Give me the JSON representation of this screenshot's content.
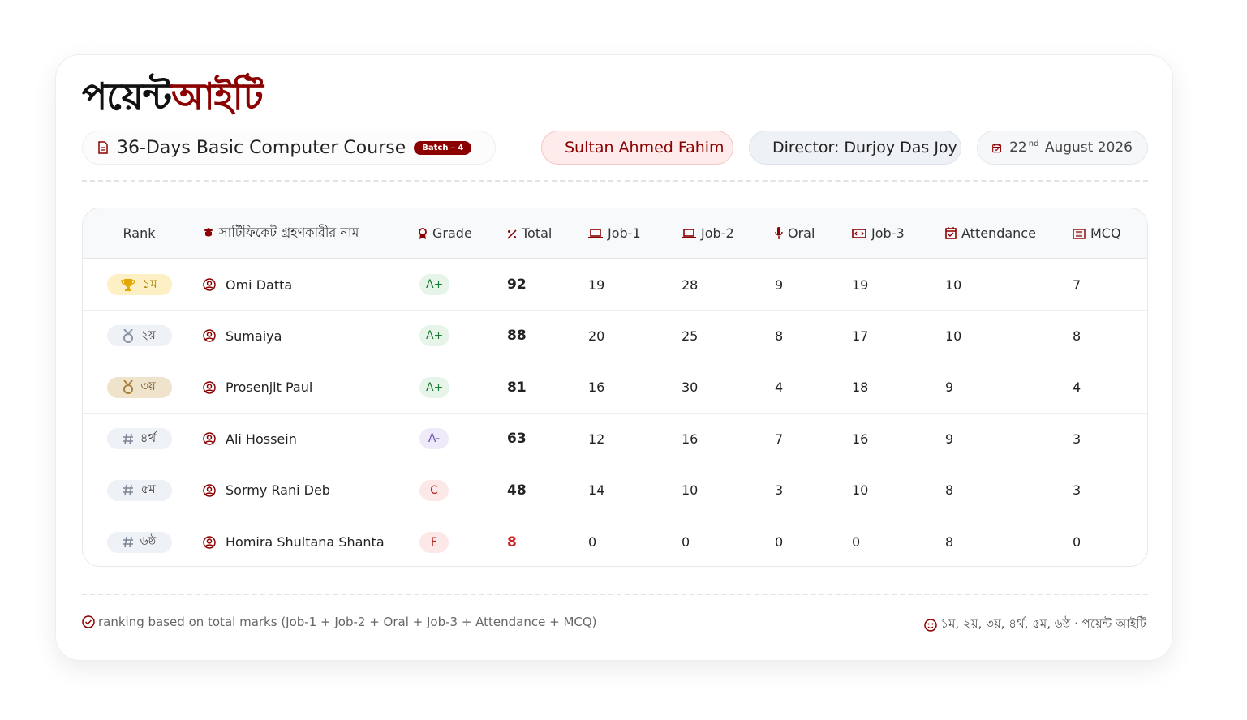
{
  "header": {
    "logo_part1": "পয়েন্ট",
    "logo_part2": "আইটি",
    "course": "36-Days Basic Computer Course",
    "batch": "Batch – 4",
    "instructor": "Sultan Ahmed Fahim",
    "director": "Director: Durjoy Das Joy",
    "date_day": "22",
    "date_suffix": "nd",
    "date_rest": "August 2026"
  },
  "table": {
    "columns": [
      "Rank",
      "সার্টিফিকেট গ্রহণকারীর নাম",
      "Grade",
      "Total",
      "Job-1",
      "Job-2",
      "Oral",
      "Job-3",
      "Attendance",
      "MCQ"
    ],
    "rows": [
      [
        "১ম",
        "Omi Datta",
        "A+",
        92,
        19,
        28,
        9,
        19,
        10,
        7
      ],
      [
        "২য়",
        "Sumaiya",
        "A+",
        88,
        20,
        25,
        8,
        17,
        10,
        8
      ],
      [
        "৩য়",
        "Prosenjit Paul",
        "A+",
        81,
        16,
        30,
        4,
        18,
        9,
        4
      ],
      [
        "৪র্থ",
        "Ali Hossein",
        "A-",
        63,
        12,
        16,
        7,
        16,
        9,
        3
      ],
      [
        "৫ম",
        "Sormy Rani Deb",
        "C",
        48,
        14,
        10,
        3,
        10,
        8,
        3
      ],
      [
        "৬ষ্ঠ",
        "Homira Shultana Shanta",
        "F",
        8,
        0,
        0,
        0,
        0,
        8,
        0
      ]
    ]
  },
  "footer": {
    "left": "ranking based on total marks (Job-1 + Job-2 + Oral + Job-3 + Attendance + MCQ)",
    "right": "১ম, ২য়, ৩য়, ৪র্থ, ৫ম, ৬ষ্ঠ · পয়েন্ট আইটি"
  }
}
